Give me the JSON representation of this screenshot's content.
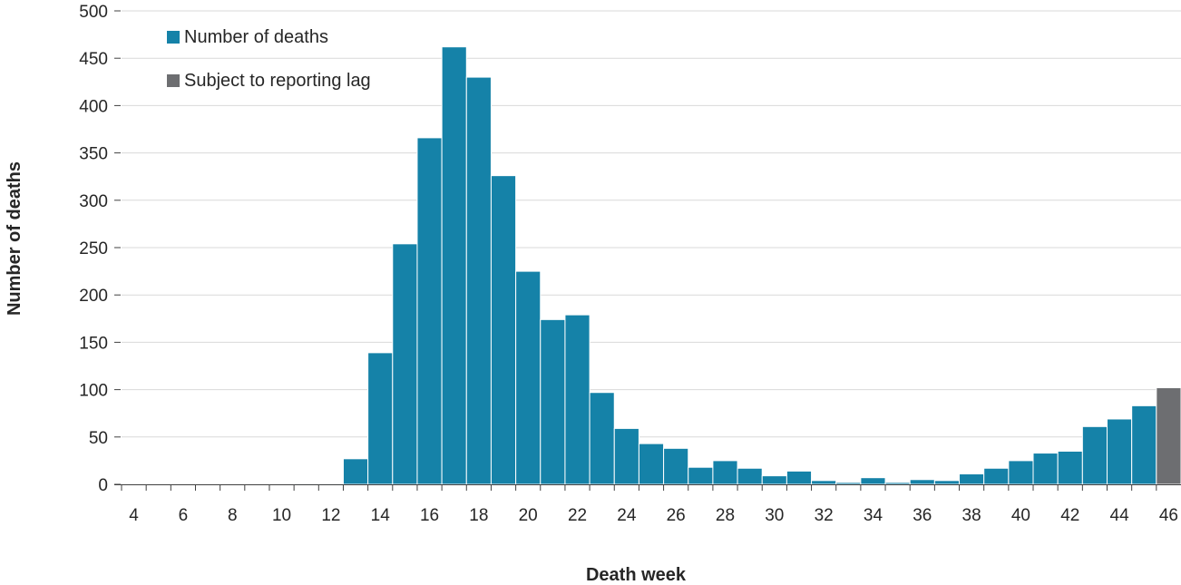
{
  "chart_data": {
    "type": "bar",
    "xlabel": "Death week",
    "ylabel": "Number of deaths",
    "ylim": [
      0,
      500
    ],
    "yticks": [
      0,
      50,
      100,
      150,
      200,
      250,
      300,
      350,
      400,
      450,
      500
    ],
    "x_tick_labels": [
      "4",
      "6",
      "8",
      "10",
      "12",
      "14",
      "16",
      "18",
      "20",
      "22",
      "24",
      "26",
      "28",
      "30",
      "32",
      "34",
      "36",
      "38",
      "40",
      "42",
      "44",
      "46"
    ],
    "grid": true,
    "legend_position": "top-left",
    "categories": [
      4,
      5,
      6,
      7,
      8,
      9,
      10,
      11,
      12,
      13,
      14,
      15,
      16,
      17,
      18,
      19,
      20,
      21,
      22,
      23,
      24,
      25,
      26,
      27,
      28,
      29,
      30,
      31,
      32,
      33,
      34,
      35,
      36,
      37,
      38,
      39,
      40,
      41,
      42,
      43,
      44,
      45,
      46
    ],
    "series": [
      {
        "name": "Number of deaths",
        "color": "#1582a8",
        "values": [
          0,
          0,
          0,
          0,
          0,
          0,
          0,
          1,
          1,
          27,
          139,
          254,
          366,
          462,
          430,
          326,
          225,
          174,
          179,
          97,
          59,
          43,
          38,
          18,
          25,
          17,
          9,
          14,
          4,
          2,
          7,
          2,
          5,
          4,
          11,
          17,
          25,
          33,
          35,
          61,
          69,
          83,
          0
        ]
      },
      {
        "name": "Subject to reporting lag",
        "color": "#6d6e71",
        "values": [
          0,
          0,
          0,
          0,
          0,
          0,
          0,
          0,
          0,
          0,
          0,
          0,
          0,
          0,
          0,
          0,
          0,
          0,
          0,
          0,
          0,
          0,
          0,
          0,
          0,
          0,
          0,
          0,
          0,
          0,
          0,
          0,
          0,
          0,
          0,
          0,
          0,
          0,
          0,
          0,
          0,
          0,
          102
        ]
      }
    ]
  }
}
